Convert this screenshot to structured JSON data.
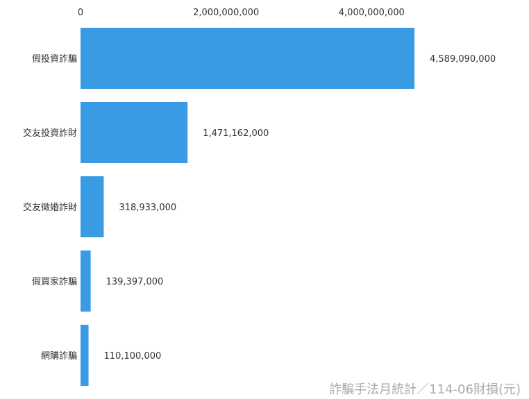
{
  "chart_data": {
    "type": "bar",
    "orientation": "horizontal",
    "categories": [
      "假投資詐騙",
      "交友投資詐財",
      "交友徵婚詐財",
      "假買家詐騙",
      "網購詐騙"
    ],
    "values": [
      4589090000,
      1471162000,
      318933000,
      139397000,
      110100000
    ],
    "value_labels": [
      "4,589,090,000",
      "1,471,162,000",
      "318,933,000",
      "139,397,000",
      "110,100,000"
    ],
    "x_ticks": [
      0,
      2000000000,
      4000000000
    ],
    "x_tick_labels": [
      "0",
      "2,000,000,000",
      "4,000,000,000"
    ],
    "xlim": [
      0,
      4589090000
    ],
    "axis_position": "top",
    "grid": false,
    "legend": "none",
    "title": "",
    "xlabel": "",
    "ylabel": "",
    "bar_color": "#389be4",
    "caption": "詐騙手法月統計／114-06財損(元)"
  }
}
